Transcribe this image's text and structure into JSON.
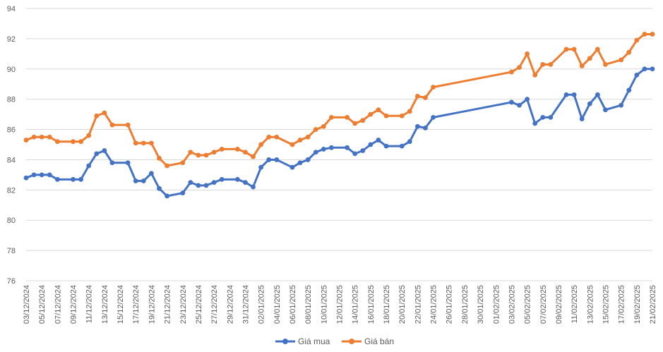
{
  "chart_data": {
    "type": "line",
    "ylim": [
      76,
      94
    ],
    "y_ticks": [
      76,
      78,
      80,
      82,
      84,
      86,
      88,
      90,
      92,
      94
    ],
    "grid": "horizontal",
    "legend_position": "bottom",
    "x_start": "2024-12-03",
    "x_end": "2025-02-21",
    "x_tick_labels": [
      "03/12/2024",
      "05/12/2024",
      "07/12/2024",
      "09/12/2024",
      "11/12/2024",
      "13/12/2024",
      "15/12/2024",
      "17/12/2024",
      "19/12/2024",
      "21/12/2024",
      "23/12/2024",
      "25/12/2024",
      "27/12/2024",
      "29/12/2024",
      "31/12/2024",
      "02/01/2025",
      "04/01/2025",
      "06/01/2025",
      "08/01/2025",
      "10/01/2025",
      "12/01/2025",
      "14/01/2025",
      "16/01/2025",
      "18/01/2025",
      "20/01/2025",
      "22/01/2025",
      "24/01/2025",
      "26/01/2025",
      "28/01/2025",
      "30/01/2025",
      "01/02/2025",
      "03/02/2025",
      "05/02/2025",
      "07/02/2025",
      "09/02/2025",
      "11/02/2025",
      "13/02/2025",
      "15/02/2025",
      "17/02/2025",
      "19/02/2025",
      "21/02/2025"
    ],
    "series": [
      {
        "name": "Giá mua",
        "color": "#4472C4",
        "points": [
          [
            "2024-12-03",
            82.8
          ],
          [
            "2024-12-04",
            83.0
          ],
          [
            "2024-12-05",
            83.0
          ],
          [
            "2024-12-06",
            83.0
          ],
          [
            "2024-12-07",
            82.7
          ],
          [
            "2024-12-09",
            82.7
          ],
          [
            "2024-12-10",
            82.7
          ],
          [
            "2024-12-11",
            83.6
          ],
          [
            "2024-12-12",
            84.4
          ],
          [
            "2024-12-13",
            84.6
          ],
          [
            "2024-12-14",
            83.8
          ],
          [
            "2024-12-16",
            83.8
          ],
          [
            "2024-12-17",
            82.6
          ],
          [
            "2024-12-18",
            82.6
          ],
          [
            "2024-12-19",
            83.1
          ],
          [
            "2024-12-20",
            82.1
          ],
          [
            "2024-12-21",
            81.6
          ],
          [
            "2024-12-23",
            81.8
          ],
          [
            "2024-12-24",
            82.5
          ],
          [
            "2024-12-25",
            82.3
          ],
          [
            "2024-12-26",
            82.3
          ],
          [
            "2024-12-27",
            82.5
          ],
          [
            "2024-12-28",
            82.7
          ],
          [
            "2024-12-30",
            82.7
          ],
          [
            "2024-12-31",
            82.5
          ],
          [
            "2025-01-01",
            82.2
          ],
          [
            "2025-01-02",
            83.5
          ],
          [
            "2025-01-03",
            84.0
          ],
          [
            "2025-01-04",
            84.0
          ],
          [
            "2025-01-06",
            83.5
          ],
          [
            "2025-01-07",
            83.8
          ],
          [
            "2025-01-08",
            84.0
          ],
          [
            "2025-01-09",
            84.5
          ],
          [
            "2025-01-10",
            84.7
          ],
          [
            "2025-01-11",
            84.8
          ],
          [
            "2025-01-13",
            84.8
          ],
          [
            "2025-01-14",
            84.4
          ],
          [
            "2025-01-15",
            84.6
          ],
          [
            "2025-01-16",
            85.0
          ],
          [
            "2025-01-17",
            85.3
          ],
          [
            "2025-01-18",
            84.9
          ],
          [
            "2025-01-20",
            84.9
          ],
          [
            "2025-01-21",
            85.2
          ],
          [
            "2025-01-22",
            86.2
          ],
          [
            "2025-01-23",
            86.1
          ],
          [
            "2025-01-24",
            86.8
          ],
          [
            "2025-02-03",
            87.8
          ],
          [
            "2025-02-04",
            87.6
          ],
          [
            "2025-02-05",
            88.0
          ],
          [
            "2025-02-06",
            86.4
          ],
          [
            "2025-02-07",
            86.8
          ],
          [
            "2025-02-08",
            86.8
          ],
          [
            "2025-02-10",
            88.3
          ],
          [
            "2025-02-11",
            88.3
          ],
          [
            "2025-02-12",
            86.7
          ],
          [
            "2025-02-13",
            87.7
          ],
          [
            "2025-02-14",
            88.3
          ],
          [
            "2025-02-15",
            87.3
          ],
          [
            "2025-02-17",
            87.6
          ],
          [
            "2025-02-18",
            88.6
          ],
          [
            "2025-02-19",
            89.6
          ],
          [
            "2025-02-20",
            90.0
          ],
          [
            "2025-02-21",
            90.0
          ]
        ]
      },
      {
        "name": "Giá bán",
        "color": "#ED7D31",
        "points": [
          [
            "2024-12-03",
            85.3
          ],
          [
            "2024-12-04",
            85.5
          ],
          [
            "2024-12-05",
            85.5
          ],
          [
            "2024-12-06",
            85.5
          ],
          [
            "2024-12-07",
            85.2
          ],
          [
            "2024-12-09",
            85.2
          ],
          [
            "2024-12-10",
            85.2
          ],
          [
            "2024-12-11",
            85.6
          ],
          [
            "2024-12-12",
            86.9
          ],
          [
            "2024-12-13",
            87.1
          ],
          [
            "2024-12-14",
            86.3
          ],
          [
            "2024-12-16",
            86.3
          ],
          [
            "2024-12-17",
            85.1
          ],
          [
            "2024-12-18",
            85.1
          ],
          [
            "2024-12-19",
            85.1
          ],
          [
            "2024-12-20",
            84.1
          ],
          [
            "2024-12-21",
            83.6
          ],
          [
            "2024-12-23",
            83.8
          ],
          [
            "2024-12-24",
            84.5
          ],
          [
            "2024-12-25",
            84.3
          ],
          [
            "2024-12-26",
            84.3
          ],
          [
            "2024-12-27",
            84.5
          ],
          [
            "2024-12-28",
            84.7
          ],
          [
            "2024-12-30",
            84.7
          ],
          [
            "2024-12-31",
            84.5
          ],
          [
            "2025-01-01",
            84.2
          ],
          [
            "2025-01-02",
            85.0
          ],
          [
            "2025-01-03",
            85.5
          ],
          [
            "2025-01-04",
            85.5
          ],
          [
            "2025-01-06",
            85.0
          ],
          [
            "2025-01-07",
            85.3
          ],
          [
            "2025-01-08",
            85.5
          ],
          [
            "2025-01-09",
            86.0
          ],
          [
            "2025-01-10",
            86.2
          ],
          [
            "2025-01-11",
            86.8
          ],
          [
            "2025-01-13",
            86.8
          ],
          [
            "2025-01-14",
            86.4
          ],
          [
            "2025-01-15",
            86.6
          ],
          [
            "2025-01-16",
            87.0
          ],
          [
            "2025-01-17",
            87.3
          ],
          [
            "2025-01-18",
            86.9
          ],
          [
            "2025-01-20",
            86.9
          ],
          [
            "2025-01-21",
            87.2
          ],
          [
            "2025-01-22",
            88.2
          ],
          [
            "2025-01-23",
            88.1
          ],
          [
            "2025-01-24",
            88.8
          ],
          [
            "2025-02-03",
            89.8
          ],
          [
            "2025-02-04",
            90.1
          ],
          [
            "2025-02-05",
            91.0
          ],
          [
            "2025-02-06",
            89.6
          ],
          [
            "2025-02-07",
            90.3
          ],
          [
            "2025-02-08",
            90.3
          ],
          [
            "2025-02-10",
            91.3
          ],
          [
            "2025-02-11",
            91.3
          ],
          [
            "2025-02-12",
            90.2
          ],
          [
            "2025-02-13",
            90.7
          ],
          [
            "2025-02-14",
            91.3
          ],
          [
            "2025-02-15",
            90.3
          ],
          [
            "2025-02-17",
            90.6
          ],
          [
            "2025-02-18",
            91.1
          ],
          [
            "2025-02-19",
            91.9
          ],
          [
            "2025-02-20",
            92.3
          ],
          [
            "2025-02-21",
            92.3
          ]
        ]
      }
    ]
  }
}
